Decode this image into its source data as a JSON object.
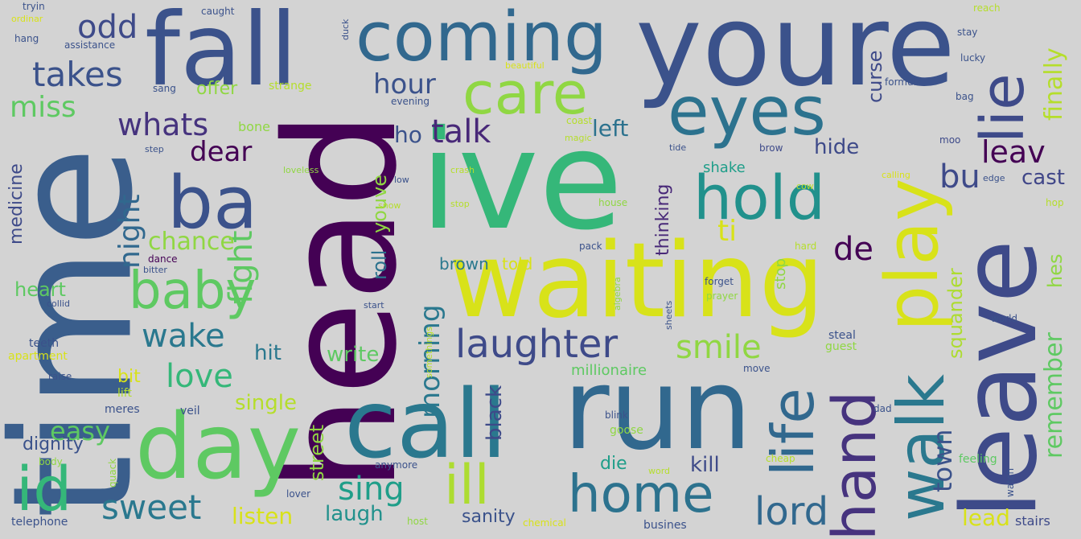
{
  "background": "#d3d3d3",
  "words": [
    {
      "id": "time",
      "text": "time",
      "color": "#3a5e8c"
    },
    {
      "id": "head",
      "text": "head",
      "color": "#440154"
    },
    {
      "id": "fall",
      "text": "fall",
      "color": "#3b528b"
    },
    {
      "id": "coming",
      "text": "coming",
      "color": "#31688e"
    },
    {
      "id": "youre",
      "text": "youre",
      "color": "#3b528b"
    },
    {
      "id": "ive",
      "text": "ive",
      "color": "#35b779"
    },
    {
      "id": "waiting",
      "text": "waiting",
      "color": "#d8e219"
    },
    {
      "id": "leave",
      "text": "leave",
      "color": "#3e4a89"
    },
    {
      "id": "call",
      "text": "call",
      "color": "#2a788e"
    },
    {
      "id": "run",
      "text": "run",
      "color": "#31688e"
    },
    {
      "id": "day",
      "text": "day",
      "color": "#5ec962"
    },
    {
      "id": "eyes",
      "text": "eyes",
      "color": "#2c728e"
    },
    {
      "id": "ba",
      "text": "ba",
      "color": "#3b528b"
    },
    {
      "id": "care",
      "text": "care",
      "color": "#90d743"
    },
    {
      "id": "hold",
      "text": "hold",
      "color": "#21918c"
    },
    {
      "id": "play",
      "text": "play",
      "color": "#d8e219"
    },
    {
      "id": "walk",
      "text": "walk",
      "color": "#2a788e"
    },
    {
      "id": "hand",
      "text": "hand",
      "color": "#46337e"
    },
    {
      "id": "life",
      "text": "life",
      "color": "#31688e"
    },
    {
      "id": "lie",
      "text": "lie",
      "color": "#3e4a89"
    },
    {
      "id": "home",
      "text": "home",
      "color": "#2c728e"
    },
    {
      "id": "ill",
      "text": "ill",
      "color": "#addc30"
    },
    {
      "id": "id",
      "text": "id",
      "color": "#35b779"
    },
    {
      "id": "baby",
      "text": "baby",
      "color": "#5ec962"
    },
    {
      "id": "laughter",
      "text": "laughter",
      "color": "#3e4a89"
    },
    {
      "id": "sweet",
      "text": "sweet",
      "color": "#2a788e"
    },
    {
      "id": "lord",
      "text": "lord",
      "color": "#31688e"
    },
    {
      "id": "sing",
      "text": "sing",
      "color": "#1f9e89"
    },
    {
      "id": "takes",
      "text": "takes",
      "color": "#3b528b"
    },
    {
      "id": "odd",
      "text": "odd",
      "color": "#3e4a89"
    },
    {
      "id": "miss",
      "text": "miss",
      "color": "#5ec962"
    },
    {
      "id": "whats",
      "text": "whats",
      "color": "#46337e"
    },
    {
      "id": "dear",
      "text": "dear",
      "color": "#440154"
    },
    {
      "id": "hour",
      "text": "hour",
      "color": "#3b528b"
    },
    {
      "id": "talk",
      "text": "talk",
      "color": "#482878"
    },
    {
      "id": "left",
      "text": "left",
      "color": "#2c728e"
    },
    {
      "id": "leav",
      "text": "leav",
      "color": "#440154"
    },
    {
      "id": "bu",
      "text": "bu",
      "color": "#3e4a89"
    },
    {
      "id": "cast",
      "text": "cast",
      "color": "#404688"
    },
    {
      "id": "finally",
      "text": "finally",
      "color": "#b5de2b"
    },
    {
      "id": "curse",
      "text": "curse",
      "color": "#3e4a89"
    },
    {
      "id": "ho",
      "text": "ho",
      "color": "#3b528b"
    },
    {
      "id": "hide",
      "text": "hide",
      "color": "#3e4a89"
    },
    {
      "id": "de",
      "text": "de",
      "color": "#440154"
    },
    {
      "id": "ti",
      "text": "ti",
      "color": "#d8e219"
    },
    {
      "id": "night",
      "text": "night",
      "color": "#31688e"
    },
    {
      "id": "fight",
      "text": "fight",
      "color": "#5ec962"
    },
    {
      "id": "chance",
      "text": "chance",
      "color": "#90d743"
    },
    {
      "id": "wake",
      "text": "wake",
      "color": "#2a788e"
    },
    {
      "id": "love",
      "text": "love",
      "color": "#35b779"
    },
    {
      "id": "morning",
      "text": "morning",
      "color": "#2a788e"
    },
    {
      "id": "smile",
      "text": "smile",
      "color": "#90d743"
    },
    {
      "id": "town",
      "text": "town",
      "color": "#3b528b"
    },
    {
      "id": "remember",
      "text": "remember",
      "color": "#5ec962"
    },
    {
      "id": "hes",
      "text": "hes",
      "color": "#90d743"
    },
    {
      "id": "squander",
      "text": "squander",
      "color": "#addc30"
    },
    {
      "id": "easy",
      "text": "easy",
      "color": "#5ec962"
    },
    {
      "id": "hit",
      "text": "hit",
      "color": "#2a788e"
    },
    {
      "id": "write",
      "text": "write",
      "color": "#5ec962"
    },
    {
      "id": "single",
      "text": "single",
      "color": "#b5de2b"
    },
    {
      "id": "black",
      "text": "black",
      "color": "#3e4a89"
    },
    {
      "id": "millionaire",
      "text": "millionaire",
      "color": "#5ec962"
    },
    {
      "id": "kill",
      "text": "kill",
      "color": "#3e4a89"
    },
    {
      "id": "die",
      "text": "die",
      "color": "#1f9e89"
    },
    {
      "id": "laugh",
      "text": "laugh",
      "color": "#21918c"
    },
    {
      "id": "listen",
      "text": "listen",
      "color": "#d8e219"
    },
    {
      "id": "sanity",
      "text": "sanity",
      "color": "#3b528b"
    },
    {
      "id": "lead",
      "text": "lead",
      "color": "#d8e219"
    },
    {
      "id": "stairs",
      "text": "stairs",
      "color": "#3e4a89"
    },
    {
      "id": "medicine",
      "text": "medicine",
      "color": "#3e4a89"
    },
    {
      "id": "heart",
      "text": "heart",
      "color": "#5ec962"
    },
    {
      "id": "dignity",
      "text": "dignity",
      "color": "#3b528b"
    },
    {
      "id": "street",
      "text": "street",
      "color": "#90d743"
    },
    {
      "id": "roll",
      "text": "roll",
      "color": "#2c728e"
    },
    {
      "id": "youve",
      "text": "youve",
      "color": "#90d743"
    },
    {
      "id": "thinking",
      "text": "thinking",
      "color": "#482878"
    },
    {
      "id": "shake",
      "text": "shake",
      "color": "#1f9e89"
    },
    {
      "id": "stop",
      "text": "stop",
      "color": "#90d743"
    },
    {
      "id": "told",
      "text": "told",
      "color": "#d8e219"
    },
    {
      "id": "brown",
      "text": "brown",
      "color": "#2a788e"
    },
    {
      "id": "offer",
      "text": "offer",
      "color": "#90d743"
    },
    {
      "id": "bone",
      "text": "bone",
      "color": "#90d743"
    },
    {
      "id": "strange",
      "text": "strange",
      "color": "#b5de2b"
    },
    {
      "id": "sang",
      "text": "sang",
      "color": "#3b528b"
    },
    {
      "id": "evening",
      "text": "evening",
      "color": "#3b528b"
    },
    {
      "id": "coast",
      "text": "coast",
      "color": "#b5de2b"
    },
    {
      "id": "tide",
      "text": "tide",
      "color": "#3b528b"
    },
    {
      "id": "brow",
      "text": "brow",
      "color": "#3e4a89"
    },
    {
      "id": "moo",
      "text": "moo",
      "color": "#3e4a89"
    },
    {
      "id": "teeth",
      "text": "teeth",
      "color": "#3b528b"
    },
    {
      "id": "apartment",
      "text": "apartment",
      "color": "#d8e219"
    },
    {
      "id": "raise",
      "text": "raise",
      "color": "#3b528b"
    },
    {
      "id": "lift",
      "text": "lift",
      "color": "#b5de2b"
    },
    {
      "id": "bit",
      "text": "bit",
      "color": "#d8e219"
    },
    {
      "id": "meres",
      "text": "meres",
      "color": "#3b528b"
    },
    {
      "id": "veil",
      "text": "veil",
      "color": "#3b528b"
    },
    {
      "id": "body",
      "text": "body",
      "color": "#90d743"
    },
    {
      "id": "quack",
      "text": "quack",
      "color": "#90d743"
    },
    {
      "id": "telephone",
      "text": "telephone",
      "color": "#3b528b"
    },
    {
      "id": "lover",
      "text": "lover",
      "color": "#3b528b"
    },
    {
      "id": "host",
      "text": "host",
      "color": "#90d743"
    },
    {
      "id": "chemical",
      "text": "chemical",
      "color": "#d8e219"
    },
    {
      "id": "business",
      "text": "busines",
      "color": "#3b528b"
    },
    {
      "id": "anymore",
      "text": "anymore",
      "color": "#3b528b"
    },
    {
      "id": "blink",
      "text": "blink",
      "color": "#3b528b"
    },
    {
      "id": "goose",
      "text": "goose",
      "color": "#90d743"
    },
    {
      "id": "word",
      "text": "word",
      "color": "#b5de2b"
    },
    {
      "id": "cheap",
      "text": "cheap",
      "color": "#b5de2b"
    },
    {
      "id": "feeling",
      "text": "feeling",
      "color": "#5ec962"
    },
    {
      "id": "watch",
      "text": "watch",
      "color": "#3b528b"
    },
    {
      "id": "dad",
      "text": "dad",
      "color": "#3b528b"
    },
    {
      "id": "steal",
      "text": "steal",
      "color": "#3b528b"
    },
    {
      "id": "guest",
      "text": "guest",
      "color": "#90d743"
    },
    {
      "id": "world",
      "text": "world",
      "color": "#3b528b"
    },
    {
      "id": "move",
      "text": "move",
      "color": "#3b528b"
    },
    {
      "id": "forget",
      "text": "forget",
      "color": "#3b528b"
    },
    {
      "id": "prayer",
      "text": "prayer",
      "color": "#90d743"
    },
    {
      "id": "hard",
      "text": "hard",
      "color": "#b5de2b"
    },
    {
      "id": "pack",
      "text": "pack",
      "color": "#3b528b"
    },
    {
      "id": "house",
      "text": "house",
      "color": "#90d743"
    },
    {
      "id": "edge",
      "text": "edge",
      "color": "#3b528b"
    },
    {
      "id": "hop",
      "text": "hop",
      "color": "#b5de2b"
    },
    {
      "id": "bag",
      "text": "bag",
      "color": "#3b528b"
    },
    {
      "id": "formula",
      "text": "formula",
      "color": "#3b528b"
    },
    {
      "id": "lucky",
      "text": "lucky",
      "color": "#3b528b"
    },
    {
      "id": "stay",
      "text": "stay",
      "color": "#3b528b"
    },
    {
      "id": "reach",
      "text": "reach",
      "color": "#b5de2b"
    },
    {
      "id": "caught",
      "text": "caught",
      "color": "#3b528b"
    },
    {
      "id": "duck",
      "text": "duck",
      "color": "#3b528b"
    },
    {
      "id": "tryin",
      "text": "tryin",
      "color": "#3b528b"
    },
    {
      "id": "ordinary",
      "text": "ordinar",
      "color": "#d8e219"
    },
    {
      "id": "hang",
      "text": "hang",
      "color": "#3b528b"
    },
    {
      "id": "assistance",
      "text": "assistance",
      "color": "#3b528b"
    },
    {
      "id": "beautiful",
      "text": "beautiful",
      "color": "#d8e219"
    },
    {
      "id": "step",
      "text": "step",
      "color": "#3b528b"
    },
    {
      "id": "magic",
      "text": "magic",
      "color": "#b5de2b"
    },
    {
      "id": "loveless",
      "text": "loveless",
      "color": "#90d743"
    },
    {
      "id": "dance",
      "text": "dance",
      "color": "#440154"
    },
    {
      "id": "bitter",
      "text": "bitter",
      "color": "#3b528b"
    },
    {
      "id": "collide",
      "text": "collid",
      "color": "#3b528b"
    },
    {
      "id": "start",
      "text": "start",
      "color": "#3b528b"
    },
    {
      "id": "sheets",
      "text": "sheets",
      "color": "#3b528b"
    },
    {
      "id": "algebra",
      "text": "algebra",
      "color": "#90d743"
    },
    {
      "id": "somethings",
      "text": "somethings",
      "color": "#b5de2b"
    },
    {
      "id": "cow",
      "text": "cow",
      "color": "#b5de2b"
    },
    {
      "id": "calling",
      "text": "calling",
      "color": "#d8e219"
    },
    {
      "id": "low",
      "text": "low",
      "color": "#3b528b"
    },
    {
      "id": "stop2",
      "text": "stop",
      "color": "#b5de2b"
    },
    {
      "id": "crash",
      "text": "crash",
      "color": "#b5de2b"
    },
    {
      "id": "snow",
      "text": "snow",
      "color": "#b5de2b"
    }
  ]
}
